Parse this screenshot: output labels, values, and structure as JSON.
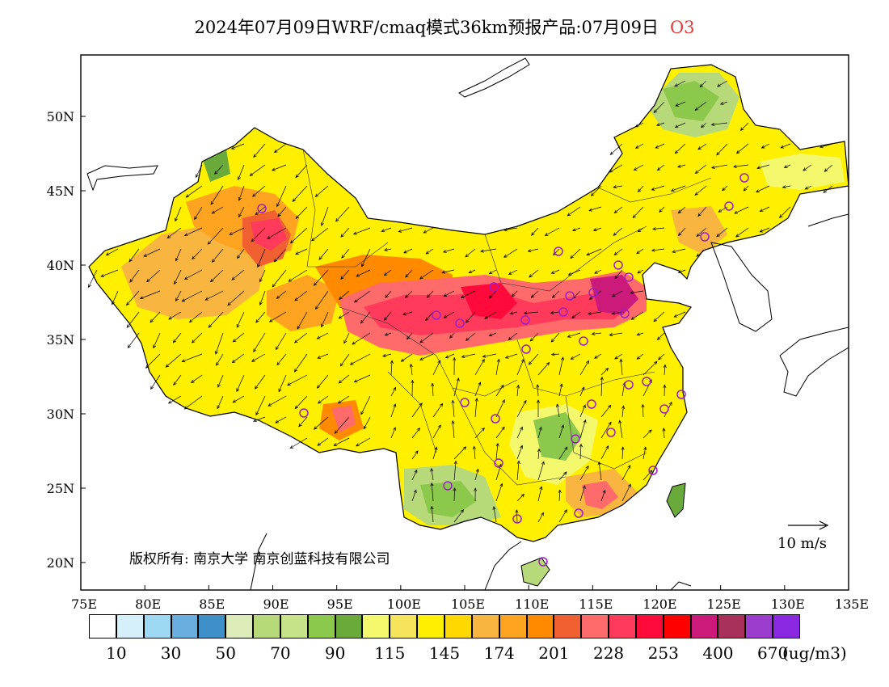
{
  "title": "2024年07月09日WRF/cmaq模式36km预报产品:07月09日",
  "pollutant": "O3",
  "copyright": "版权所有: 南京大学 南京创蓝科技有限公司",
  "wind_scale": "10 m/s",
  "lon_labels": [
    "75E",
    "80E",
    "85E",
    "90E",
    "95E",
    "100E",
    "105E",
    "110E",
    "115E",
    "120E",
    "125E",
    "130E",
    "135E"
  ],
  "lat_labels": [
    "50N",
    "45N",
    "40N",
    "35N",
    "30N",
    "25N",
    "20N"
  ],
  "colorbar": {
    "colors": [
      "#ffffff",
      "#d6f0fb",
      "#9fd8f5",
      "#6aaedf",
      "#3f8fc8",
      "#dcebb7",
      "#b8d97a",
      "#c7e38a",
      "#8cc84b",
      "#6aaa3a",
      "#f3f86c",
      "#f6e45a",
      "#fff000",
      "#ffd800",
      "#f8b640",
      "#ffa420",
      "#ff8a00",
      "#f06030",
      "#ff6a6a",
      "#ff3a5a",
      "#ff0a3a",
      "#ff0000",
      "#cc1a7a",
      "#a8305a",
      "#9b3ccf",
      "#8a28e0"
    ],
    "labels": [
      "10",
      "30",
      "50",
      "70",
      "90",
      "115",
      "145",
      "174",
      "201",
      "228",
      "253",
      "400",
      "670"
    ],
    "unit": "(ug/m3)"
  }
}
